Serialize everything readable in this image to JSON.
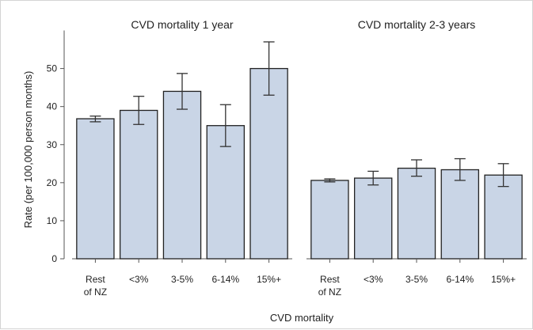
{
  "chart_data": {
    "type": "bar",
    "ylabel": "Rate (per 100,000 person months)",
    "xlabel": "CVD mortality",
    "ylim": [
      0,
      60
    ],
    "yticks": [
      0,
      10,
      20,
      30,
      40,
      50
    ],
    "categories": [
      [
        "Rest",
        "of NZ"
      ],
      [
        "<3%"
      ],
      [
        "3-5%"
      ],
      [
        "6-14%"
      ],
      [
        "15%+"
      ]
    ],
    "bar_color": "#c9d5e6",
    "grid": false,
    "panels": [
      {
        "title": "CVD mortality 1 year",
        "values": [
          36.8,
          39.0,
          44.0,
          35.0,
          50.0
        ],
        "lower": [
          36.0,
          35.3,
          39.3,
          29.5,
          43.0
        ],
        "upper": [
          37.5,
          42.7,
          48.7,
          40.5,
          57.0
        ]
      },
      {
        "title": "CVD mortality 2-3 years",
        "values": [
          20.6,
          21.2,
          23.8,
          23.4,
          22.0
        ],
        "lower": [
          20.2,
          19.4,
          21.7,
          20.6,
          19.0
        ],
        "upper": [
          21.0,
          23.0,
          26.0,
          26.3,
          25.0
        ]
      }
    ]
  }
}
